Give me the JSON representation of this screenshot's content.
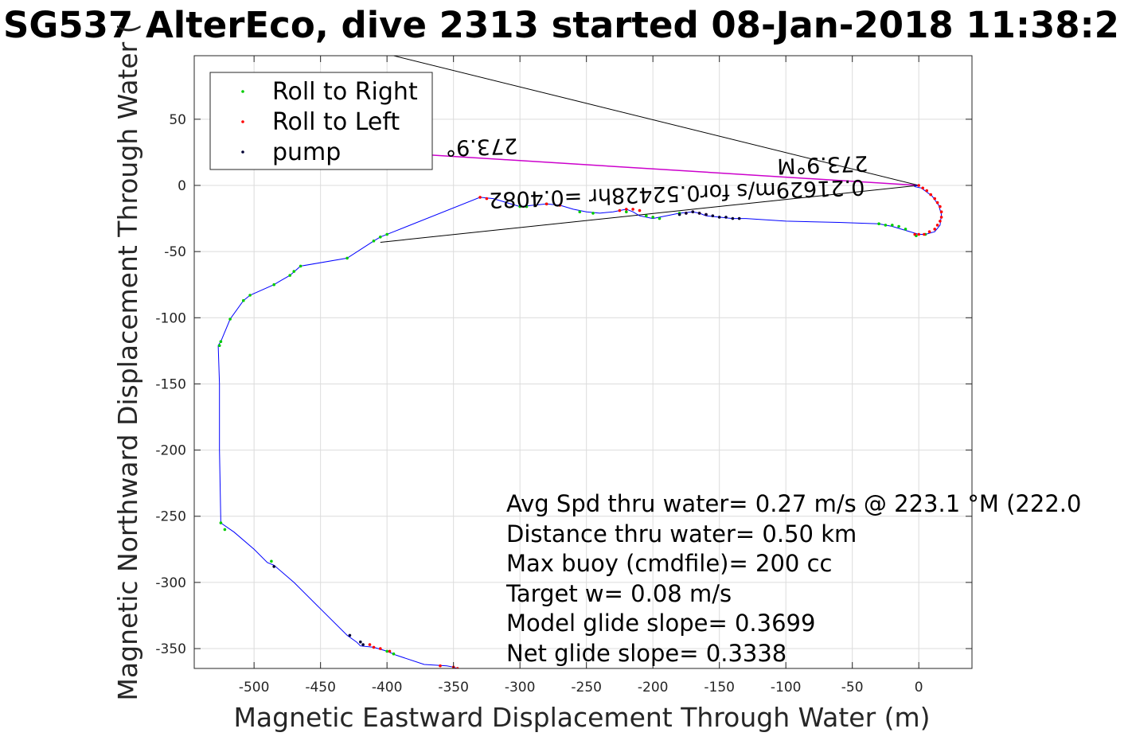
{
  "chart_data": {
    "type": "line",
    "title": "SG537 AlterEco, dive 2313 started 08-Jan-2018 11:38:2",
    "xlabel": "Magnetic Eastward Displacement Through Water (m)",
    "ylabel": "Magnetic Northward Displacement Through Water (",
    "xlim": [
      -545,
      40
    ],
    "ylim": [
      -365,
      98
    ],
    "grid": true,
    "xticks": [
      -500,
      -450,
      -400,
      -350,
      -300,
      -250,
      -200,
      -150,
      -100,
      -50,
      0
    ],
    "yticks": [
      50,
      0,
      -50,
      -100,
      -150,
      -200,
      -250,
      -300,
      -350
    ],
    "xtick_labels": [
      "-500",
      "-450",
      "-400",
      "-350",
      "-300",
      "-250",
      "-200",
      "-150",
      "-100",
      "-50",
      "0"
    ],
    "ytick_labels": [
      "50",
      "0",
      "-50",
      "-100",
      "-150",
      "-200",
      "-250",
      "-300",
      "-350"
    ],
    "colors": {
      "track": "#0000ff",
      "roll_right": "#00cc00",
      "roll_left": "#ff0000",
      "pump": "#000033",
      "current": "#cc00cc",
      "annotation": "#000000"
    },
    "track": {
      "x": [
        -345,
        -350,
        -355,
        -372,
        -393,
        -400,
        -410,
        -420,
        -423,
        -430,
        -450,
        -470,
        -485,
        -490,
        -500,
        -515,
        -525,
        -526,
        -526,
        -527,
        -525,
        -518,
        -508,
        -503,
        -485,
        -480,
        -473,
        -465,
        -430,
        -410,
        -405,
        -395,
        -330,
        -320,
        -310,
        -300,
        -290,
        -280,
        -270,
        -260,
        -250,
        -240,
        -230,
        -225,
        -220,
        -215,
        -210,
        -205,
        -200,
        -195,
        -190,
        -180,
        -170,
        -165,
        -160,
        -150,
        -140,
        -130,
        -100,
        -60,
        -30,
        -20,
        -10,
        0,
        5,
        12,
        16,
        17,
        15,
        10,
        2,
        -3,
        -2,
        -1,
        0
      ],
      "y": [
        -366,
        -364,
        -363,
        -362,
        -355,
        -352,
        -349,
        -348,
        -345,
        -340,
        -320,
        -300,
        -287,
        -285,
        -275,
        -262,
        -255,
        -200,
        -150,
        -121,
        -118,
        -101,
        -87,
        -83,
        -75,
        -72,
        -68,
        -61,
        -55,
        -42,
        -39,
        -35,
        -9,
        -10,
        -13,
        -16,
        -15,
        -14,
        -15,
        -18,
        -20,
        -21,
        -20,
        -19,
        -18,
        -20,
        -23,
        -24,
        -25,
        -24,
        -23,
        -21,
        -20,
        -21,
        -23,
        -24,
        -25,
        -25,
        -27,
        -28,
        -29,
        -31,
        -34,
        -37,
        -37,
        -35,
        -30,
        -22,
        -15,
        -8,
        -2,
        -1,
        0,
        0,
        0
      ]
    },
    "series": [
      {
        "name": "Roll to Right",
        "x": [
          -526,
          -525,
          -518,
          -508,
          -503,
          -485,
          -473,
          -470,
          -465,
          -430,
          -410,
          -405,
          -400,
          -300,
          -295,
          -280,
          -255,
          -245,
          -220,
          -205,
          -200,
          -195,
          -180,
          -30,
          -25,
          -20,
          -15,
          -10,
          -2,
          5,
          -525,
          -522,
          -487,
          -400,
          -395
        ],
        "y": [
          -121,
          -118,
          -101,
          -87,
          -83,
          -75,
          -68,
          -65,
          -61,
          -55,
          -42,
          -39,
          -37,
          -16,
          -16,
          -14,
          -20,
          -21,
          -20,
          -23,
          -24,
          -25,
          -21,
          -29,
          -30,
          -30,
          -31,
          -33,
          -38,
          -37,
          -255,
          -260,
          -284,
          -352,
          -354
        ]
      },
      {
        "name": "Roll to Left",
        "x": [
          -330,
          -325,
          -280,
          -270,
          -225,
          -220,
          -215,
          -210,
          -175,
          -170,
          -165,
          -160,
          0,
          3,
          6,
          9,
          12,
          14,
          16,
          17,
          17,
          16,
          14,
          12,
          8,
          4,
          0,
          -3,
          -413,
          -410,
          -405,
          -398,
          -360,
          -350,
          -347,
          -343
        ],
        "y": [
          -9,
          -10,
          -14,
          -15,
          -19,
          -18,
          -18,
          -19,
          -21,
          -20,
          -21,
          -22,
          0,
          -2,
          -4,
          -7,
          -10,
          -13,
          -16,
          -20,
          -24,
          -27,
          -30,
          -33,
          -35,
          -37,
          -37,
          -37,
          -347,
          -349,
          -350,
          -352,
          -363,
          -364,
          -365,
          -366
        ],
        "color_only": true
      },
      {
        "name": "pump",
        "x": [
          -180,
          -175,
          -170,
          -165,
          -160,
          -155,
          -150,
          -145,
          -140,
          -135,
          -485,
          -428,
          -420,
          -418
        ],
        "y": [
          -22,
          -21,
          -20,
          -21,
          -22,
          -23,
          -24,
          -24,
          -25,
          -25,
          -288,
          -340,
          -345,
          -347
        ]
      }
    ],
    "current_vector": {
      "from": [
        0,
        0
      ],
      "to": [
        -400,
        25
      ],
      "label_near_end": "273.9°",
      "label_near_origin": "273.9°M",
      "label_speed": "0.21629m/s for0.52428hr =0.4082"
    },
    "legend": {
      "placement": "top-left",
      "entries": [
        "Roll to Right",
        "Roll to Left",
        "pump"
      ]
    },
    "stats": [
      "Avg Spd thru water=  0.27 m/s @ 223.1 °M (222.0",
      "Distance thru water=  0.50 km",
      "Max buoy (cmdfile)= 200 cc",
      "Target w= 0.08 m/s",
      "Model glide slope= 0.3699",
      "Net glide slope= 0.3338"
    ]
  }
}
